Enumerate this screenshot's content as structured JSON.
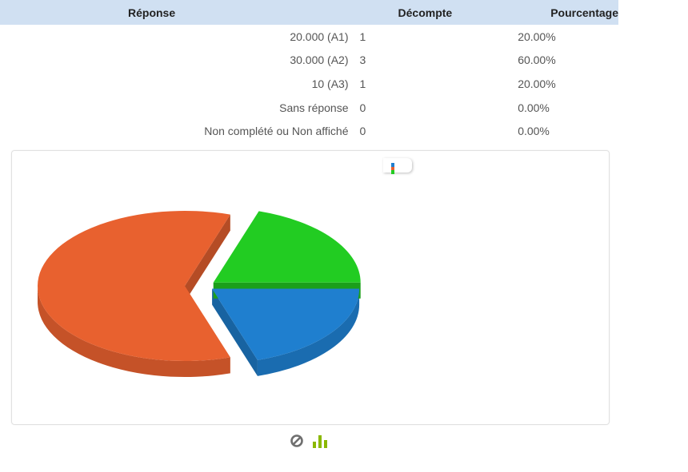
{
  "table": {
    "headers": [
      "Réponse",
      "Décompte",
      "Pourcentage"
    ],
    "rows": [
      {
        "label": "20.000 (A1)",
        "count": "1",
        "percent": "20.00%"
      },
      {
        "label": "30.000 (A2)",
        "count": "3",
        "percent": "60.00%"
      },
      {
        "label": "10 (A3)",
        "count": "1",
        "percent": "20.00%"
      },
      {
        "label": "Sans réponse",
        "count": "0",
        "percent": "0.00%"
      },
      {
        "label": "Non complété ou Non affiché",
        "count": "0",
        "percent": "0.00%"
      }
    ]
  },
  "chart_data": {
    "type": "pie",
    "categories": [
      "20.000 (A1)",
      "30.000 (A2)",
      "10 (A3)"
    ],
    "values": [
      1,
      3,
      1
    ],
    "colors": [
      "#1f7fcf",
      "#e8612f",
      "#22cc22"
    ],
    "style": "3d-exploded",
    "legend": "collapsed toggle at top"
  },
  "icons": {
    "legend_toggle": "legend-icon",
    "disable": "no-entry-icon",
    "chart_type": "bar-chart-icon"
  },
  "colors": {
    "header_bg": "#d0e0f2",
    "blue": "#1f7fcf",
    "orange": "#e8612f",
    "green": "#22cc22",
    "icon_green": "#8ab800"
  }
}
